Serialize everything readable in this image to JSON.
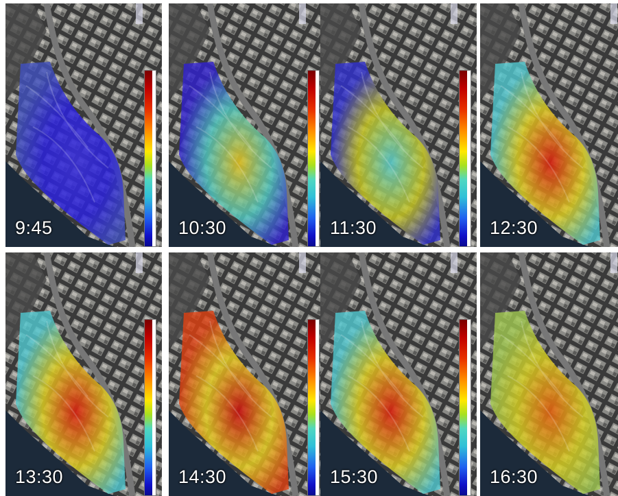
{
  "panels": [
    {
      "time": "9:45",
      "state": "cool"
    },
    {
      "time": "10:30",
      "state": "warming"
    },
    {
      "time": "11:30",
      "state": "mild"
    },
    {
      "time": "12:30",
      "state": "hot"
    },
    {
      "time": "13:30",
      "state": "hot"
    },
    {
      "time": "14:30",
      "state": "hottest"
    },
    {
      "time": "15:30",
      "state": "hot"
    },
    {
      "time": "16:30",
      "state": "cooling"
    }
  ],
  "colors": {
    "cool": [
      "#2a20e0",
      "#3a30d8",
      "#4050c0"
    ],
    "warming": [
      "#50c8c0",
      "#e0c020",
      "#3020d0"
    ],
    "mild": [
      "#c8c820",
      "#58c8c8",
      "#3030d0"
    ],
    "hot": [
      "#e0d020",
      "#d82010",
      "#50c8d0"
    ],
    "hottest": [
      "#e8d020",
      "#c81010",
      "#e04010"
    ],
    "cooling": [
      "#d8d020",
      "#e06010",
      "#a0c850"
    ]
  }
}
